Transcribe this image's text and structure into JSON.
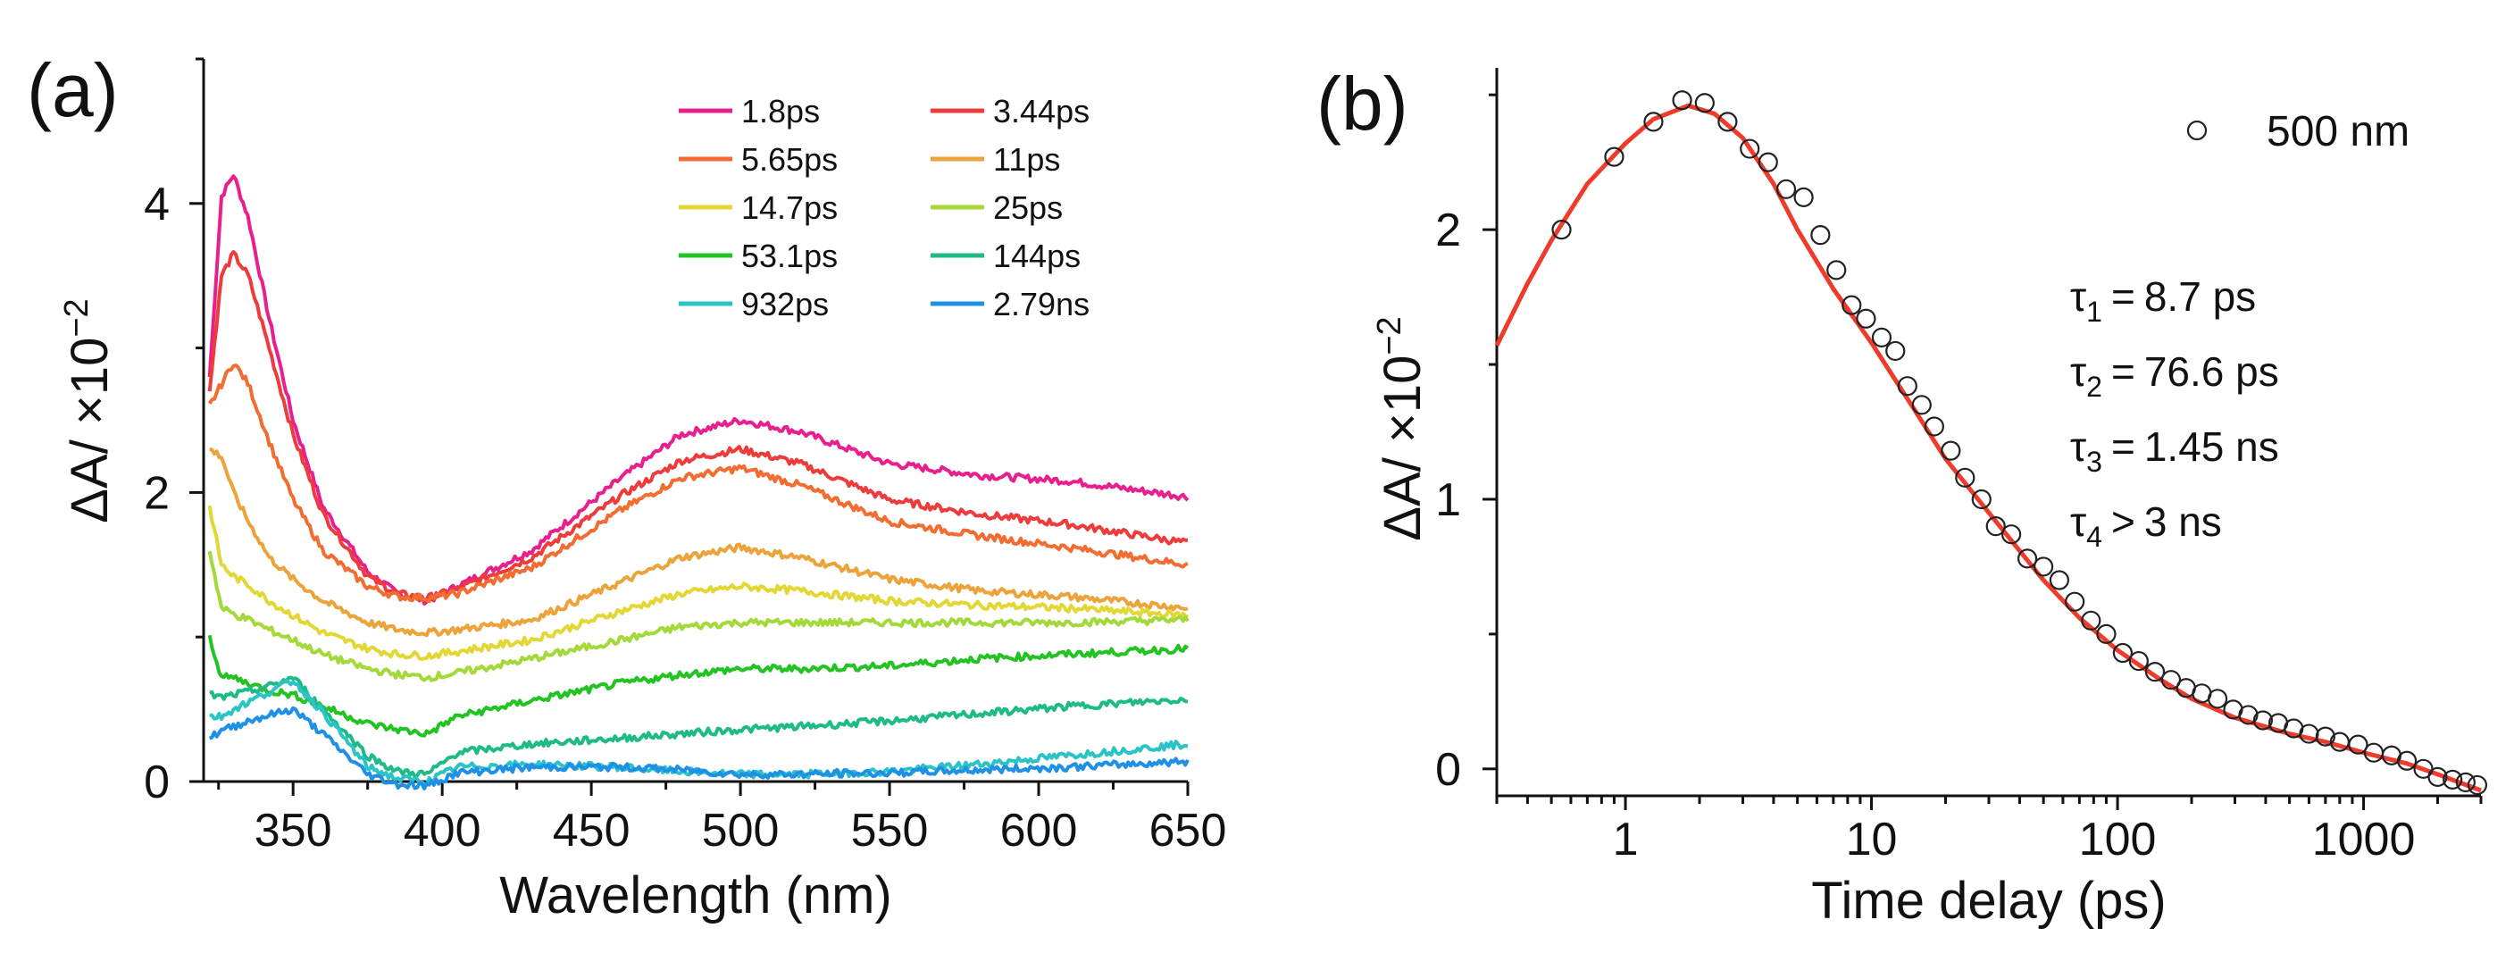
{
  "chart_data": [
    {
      "panel": "(a)",
      "type": "line",
      "xlabel": "Wavelength (nm)",
      "ylabel": "ΔA/ ×10",
      "ylabel_exp": "−2",
      "xlim": [
        320,
        650
      ],
      "ylim": [
        0,
        5
      ],
      "xticks": [
        350,
        400,
        450,
        500,
        550,
        600,
        650
      ],
      "yticks": [
        0,
        2,
        4
      ],
      "legend_position": "top-right",
      "x": [
        322,
        326,
        330,
        335,
        342,
        350,
        360,
        375,
        385,
        395,
        405,
        430,
        460,
        480,
        500,
        520,
        550,
        580,
        610,
        650
      ],
      "series": [
        {
          "name": "1.8ps",
          "color": "#E8208E",
          "values": [
            2.8,
            4.05,
            4.2,
            3.9,
            3.2,
            2.5,
            1.9,
            1.45,
            1.3,
            1.25,
            1.35,
            1.6,
            2.1,
            2.4,
            2.5,
            2.42,
            2.2,
            2.12,
            2.08,
            1.97
          ]
        },
        {
          "name": "3.44ps",
          "color": "#EE3B3B",
          "values": [
            2.7,
            3.5,
            3.65,
            3.5,
            3.0,
            2.4,
            1.85,
            1.42,
            1.3,
            1.27,
            1.33,
            1.55,
            1.98,
            2.22,
            2.3,
            2.2,
            1.95,
            1.85,
            1.78,
            1.65
          ]
        },
        {
          "name": "5.65ps",
          "color": "#F26D31",
          "values": [
            2.6,
            2.75,
            2.9,
            2.75,
            2.35,
            1.95,
            1.6,
            1.35,
            1.28,
            1.27,
            1.3,
            1.48,
            1.88,
            2.1,
            2.17,
            2.05,
            1.8,
            1.7,
            1.62,
            1.5
          ]
        },
        {
          "name": "11ps",
          "color": "#EBA33A",
          "values": [
            2.3,
            2.25,
            2.0,
            1.8,
            1.55,
            1.4,
            1.25,
            1.1,
            1.05,
            1.03,
            1.05,
            1.12,
            1.38,
            1.55,
            1.62,
            1.55,
            1.4,
            1.32,
            1.28,
            1.2
          ]
        },
        {
          "name": "14.7ps",
          "color": "#E3D735",
          "values": [
            1.9,
            1.5,
            1.42,
            1.36,
            1.25,
            1.15,
            1.03,
            0.92,
            0.88,
            0.87,
            0.9,
            0.98,
            1.18,
            1.3,
            1.35,
            1.32,
            1.25,
            1.22,
            1.2,
            1.15
          ]
        },
        {
          "name": "25ps",
          "color": "#A4D93A",
          "values": [
            1.6,
            1.2,
            1.16,
            1.12,
            1.05,
            0.98,
            0.88,
            0.78,
            0.74,
            0.72,
            0.75,
            0.85,
            0.98,
            1.07,
            1.1,
            1.1,
            1.1,
            1.1,
            1.1,
            1.12
          ]
        },
        {
          "name": "53.1ps",
          "color": "#22C322",
          "values": [
            1.0,
            0.72,
            0.72,
            0.68,
            0.63,
            0.6,
            0.52,
            0.4,
            0.36,
            0.33,
            0.45,
            0.56,
            0.68,
            0.74,
            0.78,
            0.78,
            0.8,
            0.85,
            0.88,
            0.92
          ]
        },
        {
          "name": "144ps",
          "color": "#1EBB88",
          "values": [
            0.6,
            0.58,
            0.6,
            0.62,
            0.66,
            0.72,
            0.5,
            0.18,
            0.07,
            0.05,
            0.2,
            0.26,
            0.3,
            0.33,
            0.36,
            0.38,
            0.42,
            0.47,
            0.52,
            0.57
          ]
        },
        {
          "name": "932ps",
          "color": "#2BC4C6",
          "values": [
            0.45,
            0.45,
            0.5,
            0.55,
            0.62,
            0.7,
            0.48,
            0.1,
            0.02,
            0.0,
            0.1,
            0.12,
            0.1,
            0.07,
            0.05,
            0.05,
            0.07,
            0.12,
            0.18,
            0.26
          ]
        },
        {
          "name": "2.79ns",
          "color": "#1E90E6",
          "values": [
            0.3,
            0.35,
            0.38,
            0.42,
            0.46,
            0.5,
            0.33,
            0.05,
            -0.02,
            -0.03,
            0.06,
            0.1,
            0.1,
            0.08,
            0.05,
            0.05,
            0.06,
            0.08,
            0.1,
            0.14
          ]
        }
      ]
    },
    {
      "panel": "(b)",
      "type": "scatter",
      "xscale": "log",
      "xlabel": "Time delay (ps)",
      "ylabel": "ΔA/ ×10",
      "ylabel_exp": "−2",
      "xlim": [
        0.3,
        3000
      ],
      "ylim": [
        -0.1,
        2.6
      ],
      "xticks": [
        1,
        10,
        100,
        1000
      ],
      "xtick_labels": [
        "1",
        "10",
        "100",
        "1000"
      ],
      "yticks": [
        0,
        1,
        2
      ],
      "legend": "500 nm",
      "legend_position": "top-right",
      "annotations": [
        {
          "sym": "τ",
          "sub": "1",
          "rel": "=",
          "value": "8.7 ps"
        },
        {
          "sym": "τ",
          "sub": "2",
          "rel": "=",
          "value": "76.6 ps"
        },
        {
          "sym": "τ",
          "sub": "3",
          "rel": "=",
          "value": "1.45 ns"
        },
        {
          "sym": "τ",
          "sub": "4",
          "rel": ">",
          "value": "3 ns"
        }
      ],
      "fit_color": "#EF3B2C",
      "fit": {
        "x": [
          0.3,
          0.4,
          0.5,
          0.7,
          1.0,
          1.3,
          1.8,
          2.3,
          3.0,
          4.0,
          5.0,
          7.0,
          10,
          15,
          20,
          30,
          50,
          70,
          100,
          150,
          200,
          300,
          500,
          700,
          1000,
          1500,
          2000,
          3000
        ],
        "y": [
          1.57,
          1.8,
          1.96,
          2.17,
          2.32,
          2.41,
          2.46,
          2.43,
          2.34,
          2.17,
          2.0,
          1.78,
          1.58,
          1.33,
          1.15,
          0.95,
          0.7,
          0.56,
          0.44,
          0.33,
          0.26,
          0.19,
          0.13,
          0.1,
          0.06,
          0.02,
          -0.02,
          -0.08
        ]
      },
      "points": {
        "x": [
          0.55,
          0.9,
          1.3,
          1.7,
          2.1,
          2.6,
          3.2,
          3.8,
          4.5,
          5.3,
          6.2,
          7.2,
          8.3,
          9.5,
          11,
          12.5,
          14,
          16,
          18,
          21,
          24,
          28,
          32,
          37,
          43,
          50,
          58,
          67,
          78,
          90,
          105,
          122,
          142,
          165,
          190,
          220,
          255,
          295,
          340,
          390,
          450,
          520,
          600,
          700,
          800,
          950,
          1100,
          1300,
          1500,
          1750,
          2000,
          2300,
          2600,
          2900
        ],
        "y": [
          2.0,
          2.27,
          2.4,
          2.48,
          2.47,
          2.4,
          2.3,
          2.25,
          2.15,
          2.12,
          1.98,
          1.85,
          1.72,
          1.67,
          1.6,
          1.55,
          1.42,
          1.35,
          1.27,
          1.18,
          1.08,
          1.0,
          0.9,
          0.87,
          0.78,
          0.75,
          0.7,
          0.62,
          0.55,
          0.5,
          0.43,
          0.4,
          0.36,
          0.33,
          0.3,
          0.28,
          0.26,
          0.22,
          0.2,
          0.18,
          0.17,
          0.15,
          0.13,
          0.12,
          0.1,
          0.09,
          0.06,
          0.05,
          0.03,
          0.0,
          -0.03,
          -0.04,
          -0.05,
          -0.06
        ]
      }
    }
  ]
}
